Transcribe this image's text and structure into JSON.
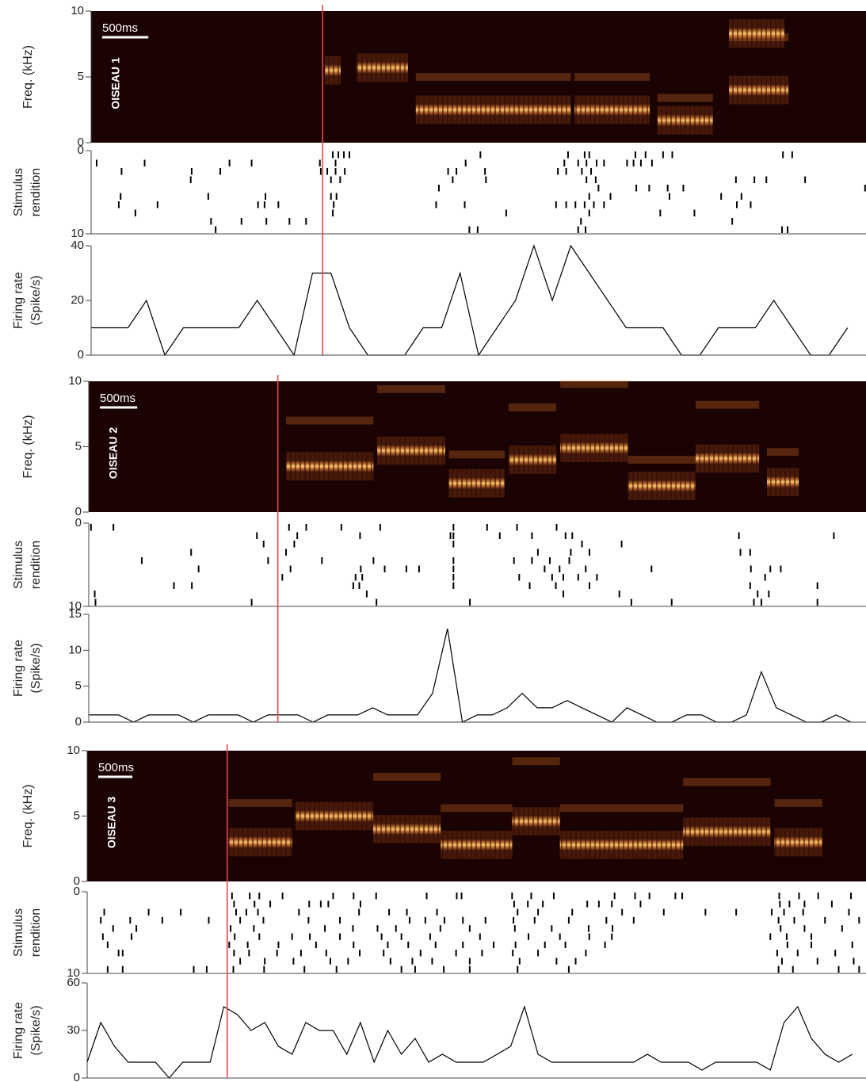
{
  "chart_data": [
    {
      "type": "spectrogram",
      "ylabel": "Freq. (kHz)",
      "label": "OISEAU 1",
      "scale_bar": {
        "value": 500,
        "label": "500ms"
      },
      "xlim": [
        0,
        8400
      ],
      "ylim": [
        0,
        10
      ],
      "yticks": [
        0,
        5,
        10
      ],
      "onset": 2510,
      "onset_color": "#e8474a",
      "background": "#1c0303",
      "color": "#ff8a2a",
      "syllables": [
        {
          "start": 2535,
          "end": 2705,
          "freq": 5.5
        },
        {
          "start": 2880,
          "end": 3435,
          "freq": 5.7
        },
        {
          "start": 3520,
          "end": 5200,
          "freq": 2.5
        },
        {
          "start": 5240,
          "end": 6055,
          "freq": 2.5
        },
        {
          "start": 6140,
          "end": 6740,
          "freq": 1.7
        },
        {
          "start": 6915,
          "end": 7560,
          "freq": 4.0
        },
        {
          "start": 6915,
          "end": 7515,
          "freq": 8.3
        }
      ]
    },
    {
      "type": "raster",
      "ylabel": [
        "Stimulus",
        "rendition"
      ],
      "xlim": [
        0,
        8400
      ],
      "ylim": [
        0,
        10
      ],
      "yticks": [
        0,
        10
      ],
      "invert": true,
      "color": "#000000",
      "trials": [
        [
          2620,
          2680,
          2740,
          2800,
          4220,
          5170,
          5350,
          5400,
          5900,
          6010,
          6200,
          6300,
          7500,
          7600
        ],
        [
          60,
          580,
          1500,
          1740,
          2480,
          2650,
          4060,
          5130,
          5280,
          5370,
          5480,
          5560,
          5810,
          5880,
          5960,
          6080
        ],
        [
          330,
          1090,
          1400,
          2490,
          2560,
          2650,
          2750,
          3870,
          3960,
          4270,
          5060,
          5150,
          5320,
          5420
        ],
        [
          1080,
          2600,
          2700,
          3920,
          4280,
          5370,
          5470,
          6990,
          7190,
          7320,
          7740
        ],
        [
          3770,
          5500,
          5910,
          6050,
          6250,
          6420,
          8390
        ],
        [
          320,
          1270,
          1890,
          2600,
          2660,
          5400,
          5630,
          6270,
          6830,
          7050
        ],
        [
          300,
          720,
          1810,
          1880,
          2030,
          2630,
          3740,
          4050,
          5040,
          5150,
          5250,
          5350,
          5450,
          5560,
          7000,
          7150
        ],
        [
          480,
          2620,
          4500,
          5400,
          6170,
          6540
        ],
        [
          1300,
          1630,
          1900,
          2150,
          2330,
          5310,
          6950
        ],
        [
          1350,
          4100,
          4190,
          5280,
          5360,
          7490,
          7550
        ]
      ]
    },
    {
      "type": "line",
      "ylabel": [
        "Firing rate",
        "(Spike/s)"
      ],
      "xlim": [
        0,
        8400
      ],
      "ylim": [
        0,
        40
      ],
      "yticks": [
        0,
        20,
        40
      ],
      "color": "#000000",
      "x": [
        0,
        200,
        400,
        600,
        800,
        1000,
        1200,
        1400,
        1600,
        1800,
        2000,
        2200,
        2400,
        2600,
        2800,
        3000,
        3200,
        3400,
        3600,
        3800,
        4000,
        4200,
        4400,
        4600,
        4800,
        5000,
        5200,
        5400,
        5600,
        5800,
        6000,
        6200,
        6400,
        6600,
        6800,
        7000,
        7200,
        7400,
        7600,
        7800,
        8000,
        8200
      ],
      "values": [
        10,
        10,
        10,
        20,
        0,
        10,
        10,
        10,
        10,
        20,
        10,
        0,
        30,
        30,
        10,
        0,
        0,
        0,
        10,
        10,
        30,
        0,
        10,
        20,
        40,
        20,
        40,
        30,
        20,
        10,
        10,
        10,
        0,
        0,
        10,
        10,
        10,
        20,
        10,
        0,
        0,
        10
      ]
    },
    {
      "type": "spectrogram",
      "ylabel": "Freq. (kHz)",
      "label": "OISEAU 2",
      "scale_bar": {
        "value": 500,
        "label": "500ms"
      },
      "xlim": [
        0,
        10400
      ],
      "ylim": [
        0,
        10
      ],
      "yticks": [
        0,
        5,
        10
      ],
      "onset": 2530,
      "onset_color": "#e8474a",
      "background": "#1c0303",
      "color": "#ff8a2a",
      "syllables": [
        {
          "start": 2640,
          "end": 3810,
          "freq": 3.5
        },
        {
          "start": 3860,
          "end": 4770,
          "freq": 4.7
        },
        {
          "start": 4820,
          "end": 5565,
          "freq": 2.2
        },
        {
          "start": 5620,
          "end": 6255,
          "freq": 4.0
        },
        {
          "start": 6310,
          "end": 7215,
          "freq": 4.9
        },
        {
          "start": 7215,
          "end": 8120,
          "freq": 2.0
        },
        {
          "start": 8120,
          "end": 8970,
          "freq": 4.1
        },
        {
          "start": 9075,
          "end": 9500,
          "freq": 2.3
        }
      ]
    },
    {
      "type": "raster",
      "ylabel": [
        "Stimulus",
        "rendition"
      ],
      "xlim": [
        0,
        10400
      ],
      "ylim": [
        0,
        10
      ],
      "yticks": [
        0,
        10
      ],
      "invert": true,
      "color": "#000000",
      "trials": [
        [
          30,
          330,
          2680,
          2910,
          3380,
          3900,
          4880,
          5330,
          5730,
          6260
        ],
        [
          2250,
          2790,
          3630,
          4840,
          4880,
          5500,
          5930,
          6380,
          6470,
          8700,
          9970
        ],
        [
          2340,
          2750,
          4880,
          6600,
          7130
        ],
        [
          1370,
          2640,
          6010,
          6450,
          6700,
          8720,
          8850
        ],
        [
          710,
          2400,
          3120,
          3810,
          4880,
          5690,
          5930,
          6170,
          6430
        ],
        [
          1470,
          2700,
          3640,
          3960,
          4250,
          4420,
          4880,
          6100,
          6300,
          6650,
          7530,
          8860,
          9120,
          9260
        ],
        [
          2590,
          3570,
          3660,
          4880,
          5760,
          6200,
          6350,
          6550,
          6800,
          9050
        ],
        [
          1140,
          1380,
          3540,
          3620,
          4880,
          5900,
          6250,
          6700,
          8850,
          9750
        ],
        [
          80,
          3720,
          6350,
          7100,
          8950,
          9100
        ],
        [
          90,
          2180,
          3850,
          5100,
          7260,
          7800,
          8900,
          9000,
          9750
        ]
      ]
    },
    {
      "type": "line",
      "ylabel": [
        "Firing rate",
        "(Spike/s)"
      ],
      "xlim": [
        0,
        10400
      ],
      "ylim": [
        0,
        15
      ],
      "yticks": [
        0,
        5,
        10,
        15
      ],
      "color": "#000000",
      "x": [
        0,
        200,
        400,
        600,
        800,
        1000,
        1200,
        1400,
        1600,
        1800,
        2000,
        2200,
        2400,
        2600,
        2800,
        3000,
        3200,
        3400,
        3600,
        3800,
        4000,
        4200,
        4400,
        4600,
        4800,
        5000,
        5200,
        5400,
        5600,
        5800,
        6000,
        6200,
        6400,
        6600,
        6800,
        7000,
        7200,
        7400,
        7600,
        7800,
        8000,
        8200,
        8400,
        8600,
        8800,
        9000,
        9200,
        9400,
        9600,
        9800,
        10000,
        10200
      ],
      "values": [
        1,
        1,
        1,
        0,
        1,
        1,
        1,
        0,
        1,
        1,
        1,
        0,
        1,
        1,
        1,
        0,
        1,
        1,
        1,
        2,
        1,
        1,
        1,
        4,
        13,
        0,
        1,
        1,
        2,
        4,
        2,
        2,
        3,
        2,
        1,
        0,
        2,
        1,
        0,
        0,
        1,
        1,
        0,
        0,
        1,
        7,
        2,
        1,
        0,
        0,
        1,
        0
      ]
    },
    {
      "type": "spectrogram",
      "ylabel": "Freq. (kHz)",
      "label": "OISEAU 3",
      "scale_bar": {
        "value": 500,
        "label": "500ms"
      },
      "xlim": [
        0,
        11400
      ],
      "ylim": [
        0,
        10
      ],
      "yticks": [
        0,
        5,
        10
      ],
      "onset": 2050,
      "onset_color": "#e8474a",
      "background": "#1c0303",
      "color": "#ff8a2a",
      "syllables": [
        {
          "start": 2070,
          "end": 3000,
          "freq": 3.0
        },
        {
          "start": 3047,
          "end": 4187,
          "freq": 5.0
        },
        {
          "start": 4187,
          "end": 5175,
          "freq": 4.0
        },
        {
          "start": 5175,
          "end": 6222,
          "freq": 2.8
        },
        {
          "start": 6222,
          "end": 6920,
          "freq": 4.6
        },
        {
          "start": 6920,
          "end": 8723,
          "freq": 2.8
        },
        {
          "start": 8723,
          "end": 10002,
          "freq": 3.8
        },
        {
          "start": 10060,
          "end": 10758,
          "freq": 3.0
        }
      ]
    },
    {
      "type": "raster",
      "ylabel": [
        "Stimulus",
        "rendition"
      ],
      "xlim": [
        0,
        11400
      ],
      "ylim": [
        0,
        10
      ],
      "yticks": [
        0,
        10
      ],
      "invert": true,
      "color": "#000000",
      "trials": [
        [
          2120,
          2380,
          2520,
          2860,
          3600,
          3900,
          4230,
          4970,
          5410,
          5480,
          6220,
          6500,
          6830,
          7720,
          8020,
          8230,
          8610,
          8710,
          10130,
          10420,
          10700,
          11180
        ],
        [
          2150,
          2450,
          2680,
          3250,
          3420,
          3530,
          4000,
          6250,
          6450,
          6670,
          7320,
          7490,
          7680,
          8100,
          10140,
          10280,
          10500,
          10900
        ],
        [
          250,
          900,
          1370,
          2180,
          2330,
          2500,
          3100,
          3980,
          4420,
          4680,
          5120,
          6300,
          6600,
          7100,
          7830,
          8440,
          9050,
          9500,
          10020,
          10200,
          10480,
          11150
        ],
        [
          200,
          630,
          1100,
          1780,
          2240,
          2580,
          3240,
          3700,
          4720,
          4950,
          5230,
          5500,
          5830,
          6240,
          6550,
          7050,
          7600,
          8000,
          10120,
          10350,
          10800,
          11300
        ],
        [
          380,
          720,
          2100,
          2440,
          3480,
          3890,
          4250,
          4520,
          5170,
          5600,
          6260,
          6800,
          7340,
          7690,
          10150,
          10500,
          11050
        ],
        [
          230,
          650,
          2160,
          2520,
          3000,
          3260,
          3700,
          4310,
          4600,
          5020,
          5750,
          6460,
          6920,
          7350,
          7680,
          10000,
          10240,
          10600
        ],
        [
          300,
          2080,
          2350,
          2800,
          3350,
          3900,
          4400,
          4700,
          5100,
          5500,
          5950,
          6270,
          6700,
          7000,
          7580,
          10250,
          10600,
          11200
        ],
        [
          460,
          520,
          2150,
          2370,
          2780,
          3130,
          3500,
          3990,
          4340,
          4880,
          5400,
          5780,
          6230,
          6600,
          7300,
          10100,
          10400,
          10950
        ],
        [
          2240,
          2600,
          3020,
          3560,
          3820,
          4440,
          4760,
          5050,
          5600,
          6330,
          6870,
          7150,
          10170,
          10690,
          11220
        ],
        [
          300,
          520,
          1560,
          1750,
          2140,
          2590,
          3180,
          3650,
          4600,
          4800,
          5220,
          5600,
          6300,
          7050,
          10120,
          10330,
          11000,
          11300
        ]
      ]
    },
    {
      "type": "line",
      "ylabel": [
        "Firing rate",
        "(Spike/s)"
      ],
      "xlim": [
        0,
        11400
      ],
      "ylim": [
        0,
        60
      ],
      "yticks": [
        0,
        30,
        60
      ],
      "color": "#000000",
      "x": [
        0,
        200,
        400,
        600,
        800,
        1000,
        1200,
        1400,
        1600,
        1800,
        2000,
        2200,
        2400,
        2600,
        2800,
        3000,
        3200,
        3400,
        3600,
        3800,
        4000,
        4200,
        4400,
        4600,
        4800,
        5000,
        5200,
        5400,
        5600,
        5800,
        6000,
        6200,
        6400,
        6600,
        6800,
        7000,
        7200,
        7400,
        7600,
        7800,
        8000,
        8200,
        8400,
        8600,
        8800,
        9000,
        9200,
        9400,
        9600,
        9800,
        10000,
        10200,
        10400,
        10600,
        10800,
        11000,
        11200
      ],
      "values": [
        10,
        35,
        20,
        10,
        10,
        10,
        0,
        10,
        10,
        10,
        45,
        40,
        30,
        35,
        20,
        15,
        35,
        30,
        30,
        15,
        35,
        10,
        30,
        15,
        25,
        10,
        15,
        10,
        10,
        10,
        15,
        20,
        45,
        15,
        10,
        10,
        10,
        10,
        10,
        10,
        10,
        15,
        10,
        10,
        10,
        5,
        10,
        10,
        10,
        10,
        5,
        35,
        45,
        25,
        15,
        10,
        15
      ]
    }
  ]
}
